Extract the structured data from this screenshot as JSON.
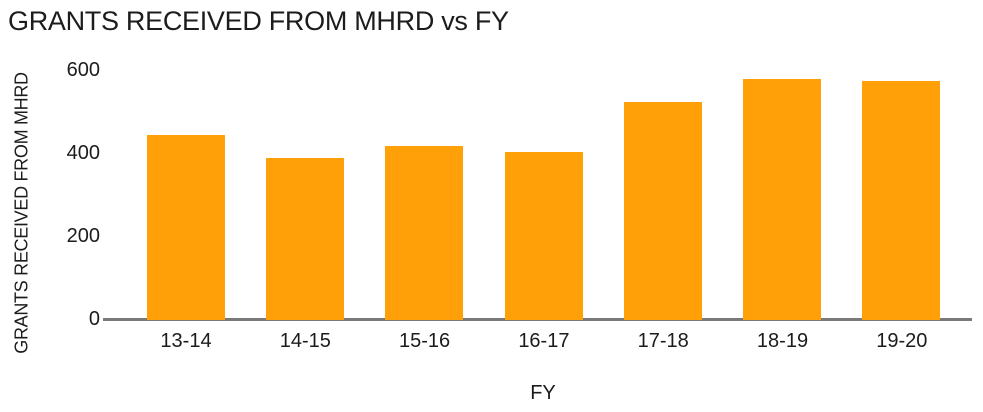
{
  "chart_data": {
    "type": "bar",
    "title": "GRANTS RECEIVED FROM MHRD vs FY",
    "categories": [
      "13-14",
      "14-15",
      "15-16",
      "16-17",
      "17-18",
      "18-19",
      "19-20"
    ],
    "values": [
      445,
      390,
      420,
      405,
      525,
      580,
      575
    ],
    "xlabel": "FY",
    "ylabel": "GRANTS RECEIVED FROM MHRD",
    "ylim": [
      0,
      600
    ],
    "yticks": [
      0,
      200,
      400,
      600
    ],
    "grid": false,
    "legend": "none",
    "colors": {
      "bar": "#FFA008",
      "axis_line": "#7a7a7a",
      "text": "#1c1c1c"
    }
  }
}
